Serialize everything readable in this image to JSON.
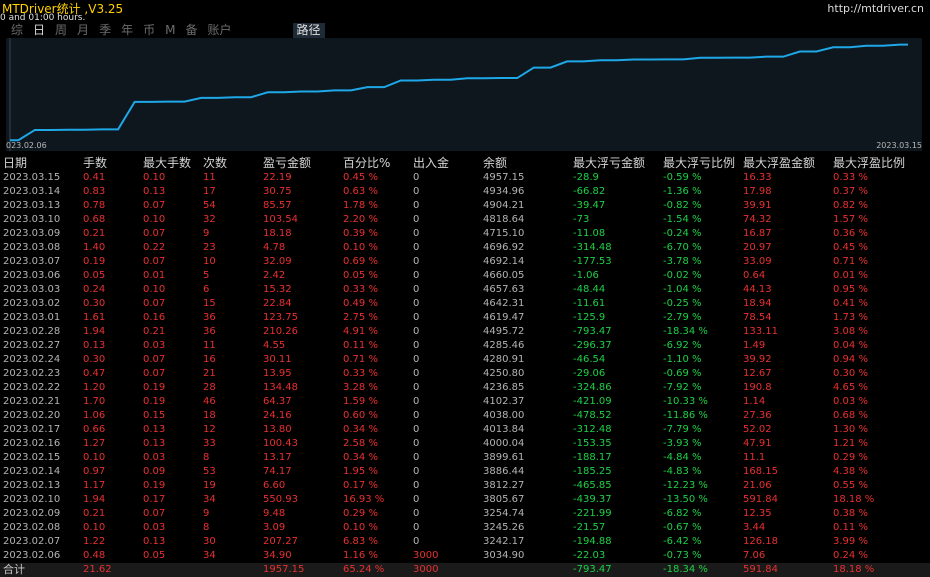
{
  "app": {
    "title": "MTDriver统计 ,V3.25",
    "subtitle": "0 and 01:00 hours.",
    "site": "http://mtdriver.cn"
  },
  "tabs": [
    {
      "label": "综",
      "active": false
    },
    {
      "label": "日",
      "active": true
    },
    {
      "label": "周",
      "active": false
    },
    {
      "label": "月",
      "active": false
    },
    {
      "label": "季",
      "active": false
    },
    {
      "label": "年",
      "active": false
    },
    {
      "label": "币",
      "active": false
    },
    {
      "label": "M",
      "active": false
    },
    {
      "label": "备",
      "active": false
    },
    {
      "label": "账户",
      "active": false
    }
  ],
  "route_tab": "路径",
  "chart_data": {
    "type": "line",
    "x_start_label": "023.02.06",
    "x_end_label": "2023.03.15",
    "x": [
      "2023.02.06",
      "2023.02.07",
      "2023.02.08",
      "2023.02.09",
      "2023.02.10",
      "2023.02.13",
      "2023.02.14",
      "2023.02.15",
      "2023.02.16",
      "2023.02.17",
      "2023.02.20",
      "2023.02.21",
      "2023.02.22",
      "2023.02.23",
      "2023.02.24",
      "2023.02.27",
      "2023.02.28",
      "2023.03.01",
      "2023.03.02",
      "2023.03.03",
      "2023.03.06",
      "2023.03.07",
      "2023.03.08",
      "2023.03.09",
      "2023.03.10",
      "2023.03.13",
      "2023.03.14",
      "2023.03.15"
    ],
    "values": [
      3034.9,
      3242.17,
      3245.26,
      3254.74,
      3805.67,
      3812.27,
      3886.44,
      3899.61,
      4000.04,
      4013.84,
      4038.0,
      4102.37,
      4236.85,
      4250.8,
      4280.91,
      4285.46,
      4495.72,
      4619.47,
      4642.31,
      4657.63,
      4660.05,
      4692.14,
      4696.92,
      4715.1,
      4818.64,
      4904.21,
      4934.96,
      4957.15
    ],
    "ylim": [
      3000,
      5050
    ],
    "color": "#1ea8e8",
    "grid": false
  },
  "table": {
    "headers": [
      "日期",
      "手数",
      "最大手数",
      "次数",
      "盈亏金额",
      "百分比%",
      "出入金",
      "余额",
      "最大浮亏金额",
      "最大浮亏比例",
      "最大浮盈金额",
      "最大浮盈比例"
    ],
    "rows": [
      [
        "2023.03.15",
        "0.41",
        "0.10",
        "11",
        "22.19",
        "0.45 %",
        "0",
        "4957.15",
        "-28.9",
        "-0.59 %",
        "16.33",
        "0.33 %"
      ],
      [
        "2023.03.14",
        "0.83",
        "0.13",
        "17",
        "30.75",
        "0.63 %",
        "0",
        "4934.96",
        "-66.82",
        "-1.36 %",
        "17.98",
        "0.37 %"
      ],
      [
        "2023.03.13",
        "0.78",
        "0.07",
        "54",
        "85.57",
        "1.78 %",
        "0",
        "4904.21",
        "-39.47",
        "-0.82 %",
        "39.91",
        "0.82 %"
      ],
      [
        "2023.03.10",
        "0.68",
        "0.10",
        "32",
        "103.54",
        "2.20 %",
        "0",
        "4818.64",
        "-73",
        "-1.54 %",
        "74.32",
        "1.57 %"
      ],
      [
        "2023.03.09",
        "0.21",
        "0.07",
        "9",
        "18.18",
        "0.39 %",
        "0",
        "4715.10",
        "-11.08",
        "-0.24 %",
        "16.87",
        "0.36 %"
      ],
      [
        "2023.03.08",
        "1.40",
        "0.22",
        "23",
        "4.78",
        "0.10 %",
        "0",
        "4696.92",
        "-314.48",
        "-6.70 %",
        "20.97",
        "0.45 %"
      ],
      [
        "2023.03.07",
        "0.19",
        "0.07",
        "10",
        "32.09",
        "0.69 %",
        "0",
        "4692.14",
        "-177.53",
        "-3.78 %",
        "33.09",
        "0.71 %"
      ],
      [
        "2023.03.06",
        "0.05",
        "0.01",
        "5",
        "2.42",
        "0.05 %",
        "0",
        "4660.05",
        "-1.06",
        "-0.02 %",
        "0.64",
        "0.01 %"
      ],
      [
        "2023.03.03",
        "0.24",
        "0.10",
        "6",
        "15.32",
        "0.33 %",
        "0",
        "4657.63",
        "-48.44",
        "-1.04 %",
        "44.13",
        "0.95 %"
      ],
      [
        "2023.03.02",
        "0.30",
        "0.07",
        "15",
        "22.84",
        "0.49 %",
        "0",
        "4642.31",
        "-11.61",
        "-0.25 %",
        "18.94",
        "0.41 %"
      ],
      [
        "2023.03.01",
        "1.61",
        "0.16",
        "36",
        "123.75",
        "2.75 %",
        "0",
        "4619.47",
        "-125.9",
        "-2.79 %",
        "78.54",
        "1.73 %"
      ],
      [
        "2023.02.28",
        "1.94",
        "0.21",
        "36",
        "210.26",
        "4.91 %",
        "0",
        "4495.72",
        "-793.47",
        "-18.34 %",
        "133.11",
        "3.08 %"
      ],
      [
        "2023.02.27",
        "0.13",
        "0.03",
        "11",
        "4.55",
        "0.11 %",
        "0",
        "4285.46",
        "-296.37",
        "-6.92 %",
        "1.49",
        "0.04 %"
      ],
      [
        "2023.02.24",
        "0.30",
        "0.07",
        "16",
        "30.11",
        "0.71 %",
        "0",
        "4280.91",
        "-46.54",
        "-1.10 %",
        "39.92",
        "0.94 %"
      ],
      [
        "2023.02.23",
        "0.47",
        "0.07",
        "21",
        "13.95",
        "0.33 %",
        "0",
        "4250.80",
        "-29.06",
        "-0.69 %",
        "12.67",
        "0.30 %"
      ],
      [
        "2023.02.22",
        "1.20",
        "0.19",
        "28",
        "134.48",
        "3.28 %",
        "0",
        "4236.85",
        "-324.86",
        "-7.92 %",
        "190.8",
        "4.65 %"
      ],
      [
        "2023.02.21",
        "1.70",
        "0.19",
        "46",
        "64.37",
        "1.59 %",
        "0",
        "4102.37",
        "-421.09",
        "-10.33 %",
        "1.14",
        "0.03 %"
      ],
      [
        "2023.02.20",
        "1.06",
        "0.15",
        "18",
        "24.16",
        "0.60 %",
        "0",
        "4038.00",
        "-478.52",
        "-11.86 %",
        "27.36",
        "0.68 %"
      ],
      [
        "2023.02.17",
        "0.66",
        "0.13",
        "12",
        "13.80",
        "0.34 %",
        "0",
        "4013.84",
        "-312.48",
        "-7.79 %",
        "52.02",
        "1.30 %"
      ],
      [
        "2023.02.16",
        "1.27",
        "0.13",
        "33",
        "100.43",
        "2.58 %",
        "0",
        "4000.04",
        "-153.35",
        "-3.93 %",
        "47.91",
        "1.21 %"
      ],
      [
        "2023.02.15",
        "0.10",
        "0.03",
        "8",
        "13.17",
        "0.34 %",
        "0",
        "3899.61",
        "-188.17",
        "-4.84 %",
        "11.1",
        "0.29 %"
      ],
      [
        "2023.02.14",
        "0.97",
        "0.09",
        "53",
        "74.17",
        "1.95 %",
        "0",
        "3886.44",
        "-185.25",
        "-4.83 %",
        "168.15",
        "4.38 %"
      ],
      [
        "2023.02.13",
        "1.17",
        "0.19",
        "19",
        "6.60",
        "0.17 %",
        "0",
        "3812.27",
        "-465.85",
        "-12.23 %",
        "21.06",
        "0.55 %"
      ],
      [
        "2023.02.10",
        "1.94",
        "0.17",
        "34",
        "550.93",
        "16.93 %",
        "0",
        "3805.67",
        "-439.37",
        "-13.50 %",
        "591.84",
        "18.18 %"
      ],
      [
        "2023.02.09",
        "0.21",
        "0.07",
        "9",
        "9.48",
        "0.29 %",
        "0",
        "3254.74",
        "-221.99",
        "-6.82 %",
        "12.35",
        "0.38 %"
      ],
      [
        "2023.02.08",
        "0.10",
        "0.03",
        "8",
        "3.09",
        "0.10 %",
        "0",
        "3245.26",
        "-21.57",
        "-0.67 %",
        "3.44",
        "0.11 %"
      ],
      [
        "2023.02.07",
        "1.22",
        "0.13",
        "30",
        "207.27",
        "6.83 %",
        "0",
        "3242.17",
        "-194.88",
        "-6.42 %",
        "126.18",
        "3.99 %"
      ],
      [
        "2023.02.06",
        "0.48",
        "0.05",
        "34",
        "34.90",
        "1.16 %",
        "3000",
        "3034.90",
        "-22.03",
        "-0.73 %",
        "7.06",
        "0.24 %"
      ]
    ],
    "total": [
      "合计",
      "21.62",
      "",
      "",
      "1957.15",
      "65.24 %",
      "3000",
      "",
      "-793.47",
      "-18.34 %",
      "591.84",
      "18.18 %"
    ]
  },
  "colors": {
    "background": "#000000",
    "title": "#ffd200",
    "negative": "#e83030",
    "positive": "#1ed046",
    "line": "#1ea8e8"
  }
}
